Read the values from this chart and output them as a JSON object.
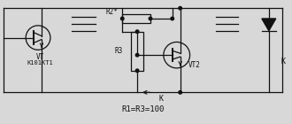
{
  "bg_color": "#d8d8d8",
  "line_color": "#111111",
  "text_color": "#111111",
  "labels": {
    "vt1": "VT",
    "vt1_model": "K101KT1",
    "r2": "R2*",
    "r3": "R3",
    "vt2": "VT2",
    "k_bottom": "K",
    "k_right": "K",
    "formula": "R1=R3=100"
  },
  "figsize": [
    3.3,
    1.4
  ],
  "dpi": 100
}
